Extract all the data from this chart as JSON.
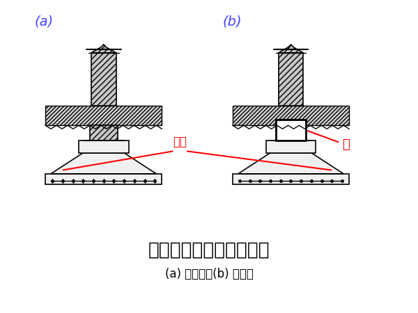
{
  "bg_color": "#ffffff",
  "title": "墙下钢筋混凝土条形基础",
  "subtitle": "(a) 无肋的；(b) 有肋的",
  "label_a": "(a)",
  "label_b": "(b)",
  "label_color": "#4444ff",
  "ann_diban": "底板",
  "ann_lei": "肋",
  "ann_color": "#ff0000",
  "lc": "#000000",
  "hatch_fc": "#c8c8c8",
  "plain_fc": "#f0f0f0",
  "white_fc": "#ffffff",
  "soil_fc": "#d0d0d0"
}
